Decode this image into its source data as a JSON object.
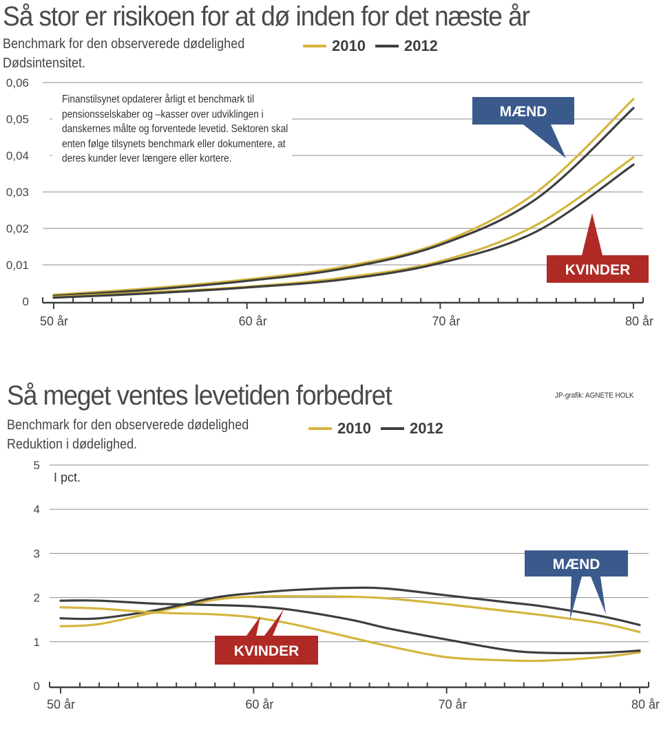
{
  "colors": {
    "series_2010": "#d4b53d",
    "series_2012": "#3e3e3e",
    "men_callout": "#3b5a8c",
    "women_callout": "#b02a25",
    "grid": "#8a8a8a",
    "axis": "#3e3e3e"
  },
  "credit": "JP-grafik: AGNETE HOLK",
  "chart_data": [
    {
      "type": "line",
      "title": "Så stor er risikoen for at dø inden for det næste år",
      "subtitle": "Benchmark for den observerede dødelighed",
      "ylabel": "Dødsintensitet.",
      "note": "Finanstilsynet opdaterer årligt et benchmark til pensionsselskaber og –kasser over udviklingen i danskernes målte og forventede levetid. Sektoren skal enten følge tilsynets benchmark eller dokumentere, at deres kunder lever længere eller kortere.",
      "legend": [
        {
          "label": "2010",
          "color": "#d4b53d"
        },
        {
          "label": "2012",
          "color": "#3e3e3e"
        }
      ],
      "legend_position": "top-right",
      "xlim": [
        49.5,
        80.5
      ],
      "ylim": [
        0,
        0.06
      ],
      "xticks": [
        50,
        60,
        70,
        80
      ],
      "xtick_labels": [
        "50 år",
        "60 år",
        "70 år",
        "80 år"
      ],
      "yticks": [
        0,
        0.01,
        0.02,
        0.03,
        0.04,
        0.05,
        0.06
      ],
      "ytick_labels": [
        "0",
        "0,01",
        "0,02",
        "0,03",
        "0,04",
        "0,05",
        "0,06"
      ],
      "grid": true,
      "x": [
        50,
        55,
        60,
        65,
        70,
        75,
        80
      ],
      "series": [
        {
          "name": "Mænd 2010",
          "group": "MÆND",
          "year": "2010",
          "values": [
            0.0018,
            0.0036,
            0.006,
            0.0095,
            0.016,
            0.03,
            0.0555
          ]
        },
        {
          "name": "Mænd 2012",
          "group": "MÆND",
          "year": "2012",
          "values": [
            0.0015,
            0.0032,
            0.0056,
            0.009,
            0.0155,
            0.0282,
            0.053
          ]
        },
        {
          "name": "Kvinder 2010",
          "group": "KVINDER",
          "year": "2010",
          "values": [
            0.0012,
            0.0025,
            0.004,
            0.0065,
            0.011,
            0.021,
            0.0395
          ]
        },
        {
          "name": "Kvinder 2012",
          "group": "KVINDER",
          "year": "2012",
          "values": [
            0.001,
            0.0022,
            0.0038,
            0.006,
            0.0105,
            0.0192,
            0.0375
          ]
        }
      ],
      "annotations": [
        {
          "label": "MÆND",
          "color": "#3b5a8c"
        },
        {
          "label": "KVINDER",
          "color": "#b02a25"
        }
      ]
    },
    {
      "type": "line",
      "title": "Så meget ventes levetiden forbedret",
      "subtitle": "Benchmark for den observerede dødelighed",
      "ylabel": "Reduktion i dødelighed.",
      "unit": "I pct.",
      "legend": [
        {
          "label": "2010",
          "color": "#d4b53d"
        },
        {
          "label": "2012",
          "color": "#3e3e3e"
        }
      ],
      "legend_position": "top-right",
      "xlim": [
        49.5,
        80.5
      ],
      "ylim": [
        0,
        5
      ],
      "xticks": [
        50,
        60,
        70,
        80
      ],
      "xtick_labels": [
        "50 år",
        "60 år",
        "70 år",
        "80 år"
      ],
      "yticks": [
        0,
        1,
        2,
        3,
        4,
        5
      ],
      "ytick_labels": [
        "0",
        "1",
        "2",
        "3",
        "4",
        "5"
      ],
      "grid": true,
      "x": [
        50,
        52,
        55,
        58,
        60,
        62,
        65,
        67,
        70,
        73,
        75,
        78,
        80
      ],
      "series": [
        {
          "name": "Mænd 2010",
          "group": "MÆND",
          "year": "2010",
          "values": [
            1.35,
            1.4,
            1.68,
            1.95,
            2.02,
            2.03,
            2.02,
            1.98,
            1.85,
            1.7,
            1.6,
            1.42,
            1.22
          ]
        },
        {
          "name": "Mænd 2012",
          "group": "MÆND",
          "year": "2012",
          "values": [
            1.53,
            1.53,
            1.72,
            2.0,
            2.1,
            2.17,
            2.22,
            2.2,
            2.05,
            1.9,
            1.8,
            1.58,
            1.38
          ]
        },
        {
          "name": "Kvinder 2010",
          "group": "KVINDER",
          "year": "2010",
          "values": [
            1.78,
            1.75,
            1.66,
            1.62,
            1.55,
            1.4,
            1.1,
            0.9,
            0.65,
            0.58,
            0.57,
            0.65,
            0.76
          ]
        },
        {
          "name": "Kvinder 2012",
          "group": "KVINDER",
          "year": "2012",
          "values": [
            1.93,
            1.93,
            1.86,
            1.83,
            1.8,
            1.72,
            1.5,
            1.3,
            1.05,
            0.82,
            0.75,
            0.75,
            0.8
          ]
        }
      ],
      "annotations": [
        {
          "label": "MÆND",
          "color": "#3b5a8c"
        },
        {
          "label": "KVINDER",
          "color": "#b02a25"
        }
      ]
    }
  ]
}
